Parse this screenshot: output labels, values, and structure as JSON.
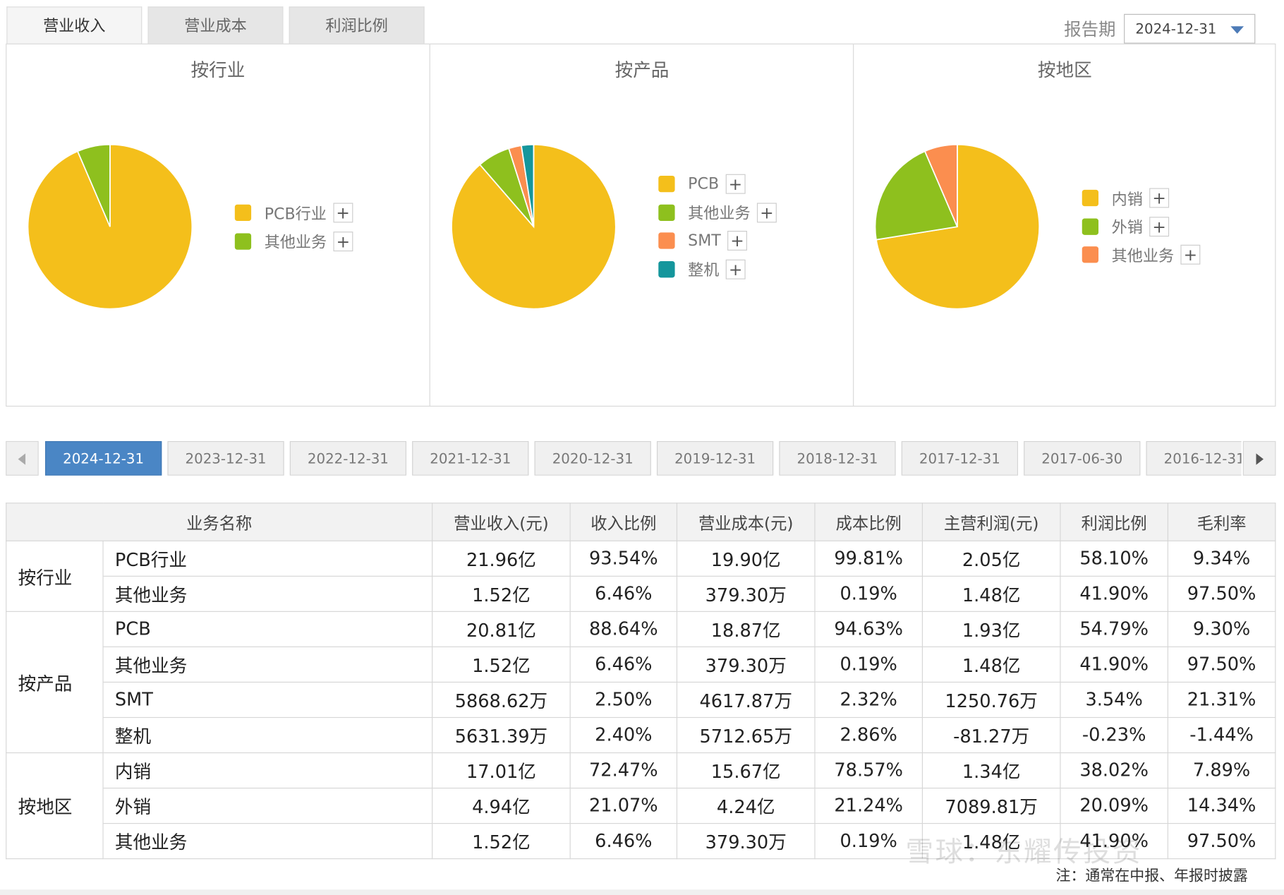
{
  "tabs": [
    {
      "label": "营业收入",
      "active": true
    },
    {
      "label": "营业成本",
      "active": false
    },
    {
      "label": "利润比例",
      "active": false
    }
  ],
  "period": {
    "label": "报告期",
    "value": "2024-12-31"
  },
  "pies": [
    {
      "title": "按行业",
      "slices": [
        {
          "label": "PCB行业",
          "percent": 93.54,
          "color": "#f4bf1b"
        },
        {
          "label": "其他业务",
          "percent": 6.46,
          "color": "#8ec01e"
        }
      ]
    },
    {
      "title": "按产品",
      "slices": [
        {
          "label": "PCB",
          "percent": 88.64,
          "color": "#f4bf1b"
        },
        {
          "label": "其他业务",
          "percent": 6.46,
          "color": "#8ec01e"
        },
        {
          "label": "SMT",
          "percent": 2.5,
          "color": "#fb8e4f"
        },
        {
          "label": "整机",
          "percent": 2.4,
          "color": "#15969c"
        }
      ]
    },
    {
      "title": "按地区",
      "slices": [
        {
          "label": "内销",
          "percent": 72.47,
          "color": "#f4bf1b"
        },
        {
          "label": "外销",
          "percent": 21.07,
          "color": "#8ec01e"
        },
        {
          "label": "其他业务",
          "percent": 6.46,
          "color": "#fb8e4f"
        }
      ]
    }
  ],
  "legend_plus": "+",
  "dates": [
    "2024-12-31",
    "2023-12-31",
    "2022-12-31",
    "2021-12-31",
    "2020-12-31",
    "2019-12-31",
    "2018-12-31",
    "2017-12-31",
    "2017-06-30",
    "2016-12-31"
  ],
  "active_date": "2024-12-31",
  "table": {
    "headers": [
      "业务名称",
      "营业收入(元)",
      "收入比例",
      "营业成本(元)",
      "成本比例",
      "主营利润(元)",
      "利润比例",
      "毛利率"
    ],
    "groups": [
      {
        "name": "按行业",
        "rows": [
          [
            "PCB行业",
            "21.96亿",
            "93.54%",
            "19.90亿",
            "99.81%",
            "2.05亿",
            "58.10%",
            "9.34%"
          ],
          [
            "其他业务",
            "1.52亿",
            "6.46%",
            "379.30万",
            "0.19%",
            "1.48亿",
            "41.90%",
            "97.50%"
          ]
        ]
      },
      {
        "name": "按产品",
        "rows": [
          [
            "PCB",
            "20.81亿",
            "88.64%",
            "18.87亿",
            "94.63%",
            "1.93亿",
            "54.79%",
            "9.30%"
          ],
          [
            "其他业务",
            "1.52亿",
            "6.46%",
            "379.30万",
            "0.19%",
            "1.48亿",
            "41.90%",
            "97.50%"
          ],
          [
            "SMT",
            "5868.62万",
            "2.50%",
            "4617.87万",
            "2.32%",
            "1250.76万",
            "3.54%",
            "21.31%"
          ],
          [
            "整机",
            "5631.39万",
            "2.40%",
            "5712.65万",
            "2.86%",
            "-81.27万",
            "-0.23%",
            "-1.44%"
          ]
        ]
      },
      {
        "name": "按地区",
        "rows": [
          [
            "内销",
            "17.01亿",
            "72.47%",
            "15.67亿",
            "78.57%",
            "1.34亿",
            "38.02%",
            "7.89%"
          ],
          [
            "外销",
            "4.94亿",
            "21.07%",
            "4.24亿",
            "21.24%",
            "7089.81万",
            "20.09%",
            "14.34%"
          ],
          [
            "其他业务",
            "1.52亿",
            "6.46%",
            "379.30万",
            "0.19%",
            "1.48亿",
            "41.90%",
            "97.50%"
          ]
        ]
      }
    ]
  },
  "note": "注：通常在中报、年报时披露",
  "watermark": "雪球：东耀传投资"
}
